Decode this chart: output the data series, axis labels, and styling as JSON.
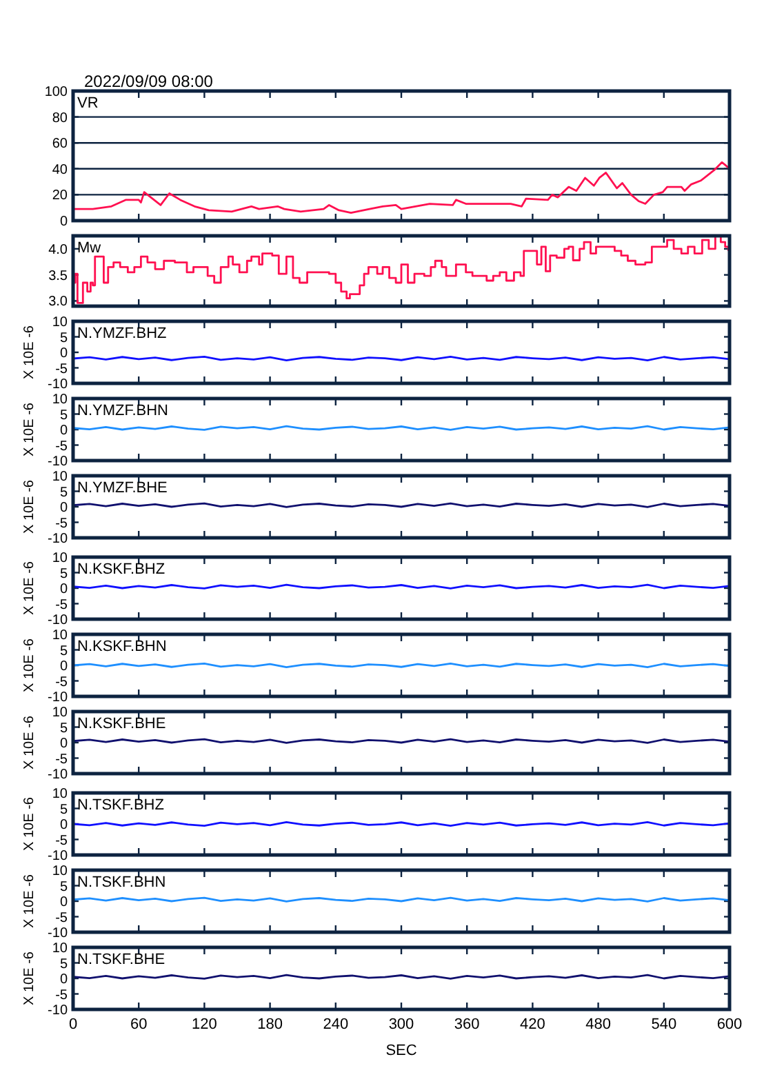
{
  "chart_data": [
    {
      "type": "line",
      "title": "2022/09/09 08:00",
      "xlim": [
        0,
        600
      ],
      "xticks": [
        0,
        60,
        120,
        180,
        240,
        300,
        360,
        420,
        480,
        540,
        600
      ],
      "ylim": [
        0,
        100
      ],
      "yticks": [
        0,
        20,
        40,
        60,
        80,
        100
      ],
      "grid": "y",
      "tick_labels": "y",
      "legend": "top left",
      "x": [
        0,
        18,
        35,
        48,
        60,
        62,
        65,
        80,
        88,
        98,
        111,
        124,
        145,
        163,
        170,
        187,
        193,
        208,
        229,
        234,
        243,
        254,
        271,
        283,
        295,
        300,
        313,
        326,
        347,
        350,
        359,
        376,
        400,
        410,
        414,
        434,
        438,
        443,
        453,
        460,
        468,
        476,
        481,
        487,
        497,
        502,
        510,
        517,
        523,
        531,
        539,
        543,
        556,
        559,
        565,
        574,
        586,
        593,
        596,
        600
      ],
      "series": [
        {
          "name": "VR",
          "color": "#ff1050",
          "values": [
            9,
            9,
            11,
            16,
            16,
            14,
            22,
            12,
            21,
            16,
            11,
            8,
            7,
            11,
            9,
            11,
            9,
            7,
            9,
            12,
            8,
            6,
            9,
            11,
            12,
            9,
            11,
            13,
            12,
            16,
            13,
            13,
            13,
            11,
            17,
            16,
            20,
            18,
            26,
            23,
            33,
            27,
            33,
            37,
            25,
            29,
            20,
            15,
            13,
            20,
            22,
            26,
            26,
            23,
            28,
            31,
            39,
            45,
            43,
            40
          ]
        }
      ]
    },
    {
      "type": "step",
      "xlim": [
        0,
        600
      ],
      "xticks": [
        0,
        60,
        120,
        180,
        240,
        300,
        360,
        420,
        480,
        540,
        600
      ],
      "ylim": [
        2.9,
        4.25
      ],
      "yticks": [
        {
          "value": 3,
          "label": "3.0"
        },
        {
          "value": 3.5,
          "label": "3.5"
        },
        {
          "value": 4,
          "label": "4.0"
        }
      ],
      "tick_labels": "y",
      "legend": "top left",
      "x": [
        0,
        2,
        4,
        7,
        9,
        13,
        16,
        18,
        20,
        24,
        28,
        32,
        37,
        43,
        50,
        56,
        62,
        68,
        75,
        83,
        93,
        104,
        110,
        119,
        123,
        129,
        135,
        142,
        146,
        152,
        159,
        163,
        170,
        173,
        182,
        188,
        195,
        201,
        207,
        214,
        228,
        234,
        240,
        245,
        250,
        253,
        259,
        262,
        266,
        270,
        278,
        283,
        289,
        295,
        300,
        306,
        312,
        321,
        327,
        331,
        337,
        341,
        350,
        359,
        365,
        371,
        378,
        384,
        390,
        396,
        403,
        409,
        412,
        421,
        424,
        428,
        432,
        436,
        442,
        449,
        453,
        457,
        463,
        467,
        473,
        478,
        488,
        495,
        501,
        507,
        514,
        523,
        529,
        537,
        543,
        549,
        556,
        562,
        568,
        575,
        581,
        587,
        592,
        596,
        599
      ],
      "series": [
        {
          "name": "Mw",
          "color": "#ff1050",
          "values": [
            3.35,
            3.52,
            2.96,
            2.96,
            3.35,
            3.18,
            3.35,
            3.3,
            3.85,
            3.85,
            3.35,
            3.65,
            3.74,
            3.65,
            3.55,
            3.65,
            3.85,
            3.74,
            3.61,
            3.77,
            3.74,
            3.55,
            3.65,
            3.65,
            3.48,
            3.35,
            3.65,
            3.85,
            3.7,
            3.55,
            3.77,
            3.85,
            3.7,
            3.91,
            3.87,
            3.52,
            3.85,
            3.44,
            3.35,
            3.55,
            3.55,
            3.52,
            3.35,
            3.18,
            3.05,
            3.13,
            3.13,
            3.3,
            3.52,
            3.65,
            3.52,
            3.65,
            3.44,
            3.35,
            3.7,
            3.35,
            3.52,
            3.48,
            3.65,
            3.77,
            3.65,
            3.48,
            3.7,
            3.55,
            3.48,
            3.48,
            3.39,
            3.48,
            3.55,
            3.39,
            3.55,
            3.48,
            3.96,
            3.96,
            3.7,
            4.04,
            3.57,
            3.87,
            3.83,
            4.0,
            4.04,
            3.78,
            4.0,
            4.13,
            3.91,
            4.04,
            4.04,
            3.96,
            3.87,
            3.77,
            3.7,
            3.74,
            4.04,
            4.04,
            4.17,
            4.0,
            3.91,
            4.04,
            3.91,
            4.17,
            4.0,
            4.25,
            4.13,
            4.04,
            3.96
          ]
        }
      ]
    },
    {
      "type": "line",
      "ylabel": "X 10E -6",
      "xlim": [
        0,
        600
      ],
      "xticks": [
        0,
        60,
        120,
        180,
        240,
        300,
        360,
        420,
        480,
        540,
        600
      ],
      "ylim": [
        -10,
        10
      ],
      "yticks": [
        -10,
        -5,
        0,
        5,
        10
      ],
      "tick_labels": "y",
      "legend": "top left",
      "x": [
        0,
        15,
        30,
        45,
        60,
        75,
        90,
        105,
        120,
        135,
        150,
        165,
        180,
        195,
        210,
        225,
        240,
        255,
        270,
        285,
        300,
        315,
        330,
        345,
        360,
        375,
        390,
        405,
        420,
        435,
        450,
        465,
        480,
        495,
        510,
        525,
        540,
        555,
        570,
        585,
        600
      ],
      "series": [
        {
          "name": "N.YMZF.BHZ",
          "color": "#1010ff",
          "values": [
            -2,
            -1.6,
            -2.3,
            -1.5,
            -2.2,
            -1.7,
            -2.5,
            -1.8,
            -1.4,
            -2.4,
            -1.9,
            -2.3,
            -1.6,
            -2.6,
            -1.8,
            -1.5,
            -2.1,
            -2.4,
            -1.7,
            -1.9,
            -2.5,
            -1.6,
            -2.2,
            -1.4,
            -2.3,
            -1.8,
            -2.4,
            -1.5,
            -1.9,
            -2.2,
            -1.7,
            -2.5,
            -1.6,
            -2.1,
            -1.8,
            -2.6,
            -1.5,
            -2.3,
            -1.9,
            -1.6,
            -2.2
          ]
        }
      ]
    },
    {
      "type": "line",
      "ylabel": "X 10E -6",
      "xlim": [
        0,
        600
      ],
      "xticks": [
        0,
        60,
        120,
        180,
        240,
        300,
        360,
        420,
        480,
        540,
        600
      ],
      "ylim": [
        -10,
        10
      ],
      "yticks": [
        -10,
        -5,
        0,
        5,
        10
      ],
      "tick_labels": "y",
      "legend": "top left",
      "x": [
        0,
        15,
        30,
        45,
        60,
        75,
        90,
        105,
        120,
        135,
        150,
        165,
        180,
        195,
        210,
        225,
        240,
        255,
        270,
        285,
        300,
        315,
        330,
        345,
        360,
        375,
        390,
        405,
        420,
        435,
        450,
        465,
        480,
        495,
        510,
        525,
        540,
        555,
        570,
        585,
        600
      ],
      "series": [
        {
          "name": "N.YMZF.BHN",
          "color": "#1e8fff",
          "values": [
            0.5,
            0.1,
            0.8,
            0,
            0.7,
            0.2,
            1,
            0.3,
            -0.1,
            0.9,
            0.4,
            0.8,
            0.1,
            1.1,
            0.3,
            0,
            0.6,
            0.9,
            0.2,
            0.4,
            1,
            0.1,
            0.7,
            -0.1,
            0.8,
            0.3,
            0.9,
            0,
            0.4,
            0.7,
            0.2,
            1,
            0.1,
            0.6,
            0.3,
            1.1,
            0,
            0.8,
            0.4,
            0.1,
            0.7
          ]
        }
      ]
    },
    {
      "type": "line",
      "ylabel": "X 10E -6",
      "xlim": [
        0,
        600
      ],
      "xticks": [
        0,
        60,
        120,
        180,
        240,
        300,
        360,
        420,
        480,
        540,
        600
      ],
      "ylim": [
        -10,
        10
      ],
      "yticks": [
        -10,
        -5,
        0,
        5,
        10
      ],
      "tick_labels": "y",
      "legend": "top left",
      "x": [
        0,
        15,
        30,
        45,
        60,
        75,
        90,
        105,
        120,
        135,
        150,
        165,
        180,
        195,
        210,
        225,
        240,
        255,
        270,
        285,
        300,
        315,
        330,
        345,
        360,
        375,
        390,
        405,
        420,
        435,
        450,
        465,
        480,
        495,
        510,
        525,
        540,
        555,
        570,
        585,
        600
      ],
      "series": [
        {
          "name": "N.YMZF.BHE",
          "color": "#10106e",
          "values": [
            0.5,
            0.9,
            0.2,
            1,
            0.3,
            0.8,
            0,
            0.7,
            1.1,
            0.1,
            0.6,
            0.2,
            0.9,
            -0.1,
            0.7,
            1,
            0.4,
            0.1,
            0.8,
            0.6,
            0,
            0.9,
            0.3,
            1.1,
            0.2,
            0.7,
            0.1,
            1,
            0.6,
            0.3,
            0.8,
            0,
            0.9,
            0.4,
            0.7,
            -0.1,
            1,
            0.2,
            0.6,
            0.9,
            0.3
          ]
        }
      ]
    },
    {
      "type": "line",
      "ylabel": "X 10E -6",
      "xlim": [
        0,
        600
      ],
      "xticks": [
        0,
        60,
        120,
        180,
        240,
        300,
        360,
        420,
        480,
        540,
        600
      ],
      "ylim": [
        -10,
        10
      ],
      "yticks": [
        -10,
        -5,
        0,
        5,
        10
      ],
      "tick_labels": "y",
      "legend": "top left",
      "x": [
        0,
        15,
        30,
        45,
        60,
        75,
        90,
        105,
        120,
        135,
        150,
        165,
        180,
        195,
        210,
        225,
        240,
        255,
        270,
        285,
        300,
        315,
        330,
        345,
        360,
        375,
        390,
        405,
        420,
        435,
        450,
        465,
        480,
        495,
        510,
        525,
        540,
        555,
        570,
        585,
        600
      ],
      "series": [
        {
          "name": "N.KSKF.BHZ",
          "color": "#1010ff",
          "values": [
            0.5,
            0.1,
            0.8,
            0,
            0.7,
            0.2,
            1,
            0.3,
            -0.1,
            0.9,
            0.4,
            0.8,
            0.1,
            1.1,
            0.3,
            0,
            0.6,
            0.9,
            0.2,
            0.4,
            1,
            0.1,
            0.7,
            -0.1,
            0.8,
            0.3,
            0.9,
            0,
            0.4,
            0.7,
            0.2,
            1,
            0.1,
            0.6,
            0.3,
            1.1,
            0,
            0.8,
            0.4,
            0.1,
            0.7
          ]
        }
      ]
    },
    {
      "type": "line",
      "ylabel": "X 10E -6",
      "xlim": [
        0,
        600
      ],
      "xticks": [
        0,
        60,
        120,
        180,
        240,
        300,
        360,
        420,
        480,
        540,
        600
      ],
      "ylim": [
        -10,
        10
      ],
      "yticks": [
        -10,
        -5,
        0,
        5,
        10
      ],
      "tick_labels": "y",
      "legend": "top left",
      "x": [
        0,
        15,
        30,
        45,
        60,
        75,
        90,
        105,
        120,
        135,
        150,
        165,
        180,
        195,
        210,
        225,
        240,
        255,
        270,
        285,
        300,
        315,
        330,
        345,
        360,
        375,
        390,
        405,
        420,
        435,
        450,
        465,
        480,
        495,
        510,
        525,
        540,
        555,
        570,
        585,
        600
      ],
      "series": [
        {
          "name": "N.KSKF.BHN",
          "color": "#1e8fff",
          "values": [
            0,
            0.4,
            -0.3,
            0.5,
            -0.2,
            0.3,
            -0.5,
            0.2,
            0.6,
            -0.4,
            0.1,
            -0.3,
            0.4,
            -0.6,
            0.2,
            0.5,
            -0.1,
            -0.4,
            0.3,
            0.1,
            -0.5,
            0.4,
            -0.2,
            0.6,
            -0.3,
            0.2,
            -0.4,
            0.5,
            0.1,
            -0.2,
            0.3,
            -0.5,
            0.4,
            -0.1,
            0.2,
            -0.6,
            0.5,
            -0.3,
            0.1,
            0.4,
            -0.2
          ]
        }
      ]
    },
    {
      "type": "line",
      "ylabel": "X 10E -6",
      "xlim": [
        0,
        600
      ],
      "xticks": [
        0,
        60,
        120,
        180,
        240,
        300,
        360,
        420,
        480,
        540,
        600
      ],
      "ylim": [
        -10,
        10
      ],
      "yticks": [
        -10,
        -5,
        0,
        5,
        10
      ],
      "tick_labels": "y",
      "legend": "top left",
      "x": [
        0,
        15,
        30,
        45,
        60,
        75,
        90,
        105,
        120,
        135,
        150,
        165,
        180,
        195,
        210,
        225,
        240,
        255,
        270,
        285,
        300,
        315,
        330,
        345,
        360,
        375,
        390,
        405,
        420,
        435,
        450,
        465,
        480,
        495,
        510,
        525,
        540,
        555,
        570,
        585,
        600
      ],
      "series": [
        {
          "name": "N.KSKF.BHE",
          "color": "#10106e",
          "values": [
            0.5,
            0.9,
            0.2,
            1,
            0.3,
            0.8,
            0,
            0.7,
            1.1,
            0.1,
            0.6,
            0.2,
            0.9,
            -0.1,
            0.7,
            1,
            0.4,
            0.1,
            0.8,
            0.6,
            0,
            0.9,
            0.3,
            1.1,
            0.2,
            0.7,
            0.1,
            1,
            0.6,
            0.3,
            0.8,
            0,
            0.9,
            0.4,
            0.7,
            -0.1,
            1,
            0.2,
            0.6,
            0.9,
            0.3
          ]
        }
      ]
    },
    {
      "type": "line",
      "ylabel": "X 10E -6",
      "xlim": [
        0,
        600
      ],
      "xticks": [
        0,
        60,
        120,
        180,
        240,
        300,
        360,
        420,
        480,
        540,
        600
      ],
      "ylim": [
        -10,
        10
      ],
      "yticks": [
        -10,
        -5,
        0,
        5,
        10
      ],
      "tick_labels": "y",
      "legend": "top left",
      "x": [
        0,
        15,
        30,
        45,
        60,
        75,
        90,
        105,
        120,
        135,
        150,
        165,
        180,
        195,
        210,
        225,
        240,
        255,
        270,
        285,
        300,
        315,
        330,
        345,
        360,
        375,
        390,
        405,
        420,
        435,
        450,
        465,
        480,
        495,
        510,
        525,
        540,
        555,
        570,
        585,
        600
      ],
      "series": [
        {
          "name": "N.TSKF.BHZ",
          "color": "#1010ff",
          "values": [
            0,
            -0.4,
            0.3,
            -0.5,
            0.2,
            -0.3,
            0.5,
            -0.2,
            -0.6,
            0.4,
            -0.1,
            0.3,
            -0.4,
            0.6,
            -0.2,
            -0.5,
            0.1,
            0.4,
            -0.3,
            -0.1,
            0.5,
            -0.4,
            0.2,
            -0.6,
            0.3,
            -0.2,
            0.4,
            -0.5,
            -0.1,
            0.2,
            -0.3,
            0.5,
            -0.4,
            0.1,
            -0.2,
            0.6,
            -0.5,
            0.3,
            -0.1,
            -0.4,
            0.2
          ]
        }
      ]
    },
    {
      "type": "line",
      "ylabel": "X 10E -6",
      "xlim": [
        0,
        600
      ],
      "xticks": [
        0,
        60,
        120,
        180,
        240,
        300,
        360,
        420,
        480,
        540,
        600
      ],
      "ylim": [
        -10,
        10
      ],
      "yticks": [
        -10,
        -5,
        0,
        5,
        10
      ],
      "tick_labels": "y",
      "legend": "top left",
      "x": [
        0,
        15,
        30,
        45,
        60,
        75,
        90,
        105,
        120,
        135,
        150,
        165,
        180,
        195,
        210,
        225,
        240,
        255,
        270,
        285,
        300,
        315,
        330,
        345,
        360,
        375,
        390,
        405,
        420,
        435,
        450,
        465,
        480,
        495,
        510,
        525,
        540,
        555,
        570,
        585,
        600
      ],
      "series": [
        {
          "name": "N.TSKF.BHN",
          "color": "#1e8fff",
          "values": [
            0.5,
            0.9,
            0.2,
            1,
            0.3,
            0.8,
            0,
            0.7,
            1.1,
            0.1,
            0.6,
            0.2,
            0.9,
            -0.1,
            0.7,
            1,
            0.4,
            0.1,
            0.8,
            0.6,
            0,
            0.9,
            0.3,
            1.1,
            0.2,
            0.7,
            0.1,
            1,
            0.6,
            0.3,
            0.8,
            0,
            0.9,
            0.4,
            0.7,
            -0.1,
            1,
            0.2,
            0.6,
            0.9,
            0.3
          ]
        }
      ]
    },
    {
      "type": "line",
      "ylabel": "X 10E -6",
      "xlabel": "SEC",
      "xlim": [
        0,
        600
      ],
      "xticks": [
        0,
        60,
        120,
        180,
        240,
        300,
        360,
        420,
        480,
        540,
        600
      ],
      "ylim": [
        -10,
        10
      ],
      "yticks": [
        -10,
        -5,
        0,
        5,
        10
      ],
      "legend": "top left",
      "x": [
        0,
        15,
        30,
        45,
        60,
        75,
        90,
        105,
        120,
        135,
        150,
        165,
        180,
        195,
        210,
        225,
        240,
        255,
        270,
        285,
        300,
        315,
        330,
        345,
        360,
        375,
        390,
        405,
        420,
        435,
        450,
        465,
        480,
        495,
        510,
        525,
        540,
        555,
        570,
        585,
        600
      ],
      "series": [
        {
          "name": "N.TSKF.BHE",
          "color": "#10106e",
          "values": [
            0.5,
            0.1,
            0.8,
            0,
            0.7,
            0.2,
            1,
            0.3,
            -0.1,
            0.9,
            0.4,
            0.8,
            0.1,
            1.1,
            0.3,
            0,
            0.6,
            0.9,
            0.2,
            0.4,
            1,
            0.1,
            0.7,
            -0.1,
            0.8,
            0.3,
            0.9,
            0,
            0.4,
            0.7,
            0.2,
            1,
            0.1,
            0.6,
            0.3,
            1.1,
            0,
            0.8,
            0.4,
            0.1,
            0.7
          ]
        }
      ]
    }
  ]
}
